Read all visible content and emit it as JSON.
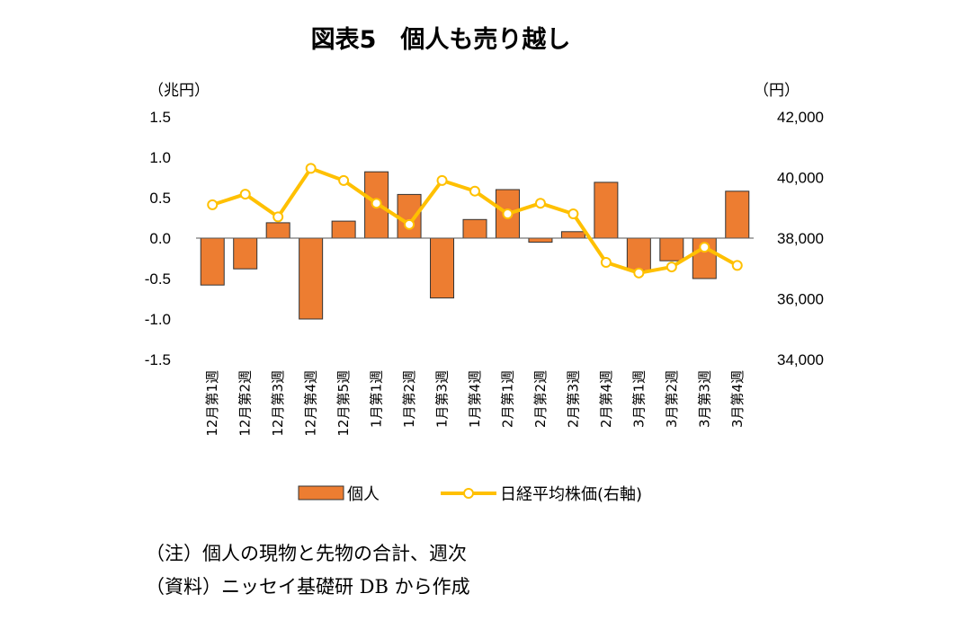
{
  "chart_data": {
    "type": "bar",
    "title": "図表5　個人も売り越し",
    "categories": [
      "12月第1週",
      "12月第2週",
      "12月第3週",
      "12月第4週",
      "12月第5週",
      "1月第1週",
      "1月第2週",
      "1月第3週",
      "1月第4週",
      "2月第1週",
      "2月第2週",
      "2月第3週",
      "2月第4週",
      "3月第1週",
      "3月第2週",
      "3月第3週",
      "3月第4週"
    ],
    "series": [
      {
        "name": "個人",
        "type": "bar",
        "axis": "left",
        "color": "#ED7D31",
        "values": [
          -0.58,
          -0.38,
          0.19,
          -1.0,
          0.21,
          0.82,
          0.54,
          -0.74,
          0.23,
          0.6,
          -0.05,
          0.08,
          0.69,
          -0.4,
          -0.28,
          -0.5,
          0.58
        ]
      },
      {
        "name": "日経平均株価(右軸)",
        "type": "line",
        "axis": "right",
        "color": "#FFC000",
        "values": [
          39100,
          39450,
          38700,
          40300,
          39900,
          39150,
          38450,
          39900,
          39550,
          38800,
          39150,
          38800,
          37200,
          36850,
          37050,
          37700,
          37100
        ]
      }
    ],
    "y_left": {
      "unit": "（兆円）",
      "min": -1.5,
      "max": 1.5,
      "ticks": [
        1.5,
        1.0,
        0.5,
        0.0,
        -0.5,
        -1.0,
        -1.5
      ],
      "tick_labels": [
        "1.5",
        "1.0",
        "0.5",
        "0.0",
        "-0.5",
        "-1.0",
        "-1.5"
      ]
    },
    "y_right": {
      "unit": "（円）",
      "min": 34000,
      "max": 42000,
      "ticks": [
        42000,
        40000,
        38000,
        36000,
        34000
      ],
      "tick_labels": [
        "42,000",
        "40,000",
        "38,000",
        "36,000",
        "34,000"
      ]
    },
    "grid": false,
    "legend_position": "bottom"
  },
  "notes": {
    "note1": "（注）個人の現物と先物の合計、週次",
    "note2": "（資料）ニッセイ基礎研 DB から作成"
  }
}
